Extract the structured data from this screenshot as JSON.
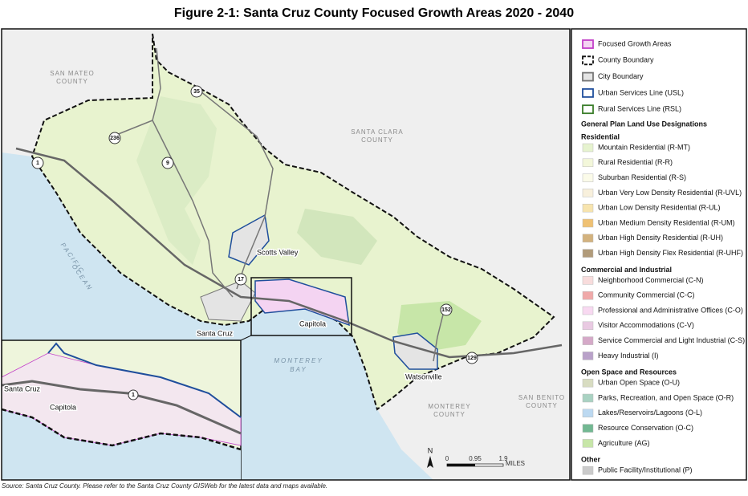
{
  "title": "Figure 2-1: Santa Cruz County Focused Growth Areas 2020 - 2040",
  "map": {
    "region_labels": [
      {
        "lines": [
          "SAN MATEO",
          "COUNTY"
        ]
      },
      {
        "lines": [
          "SANTA CLARA",
          "COUNTY"
        ]
      },
      {
        "lines": [
          "PACIFIC",
          "OCEAN"
        ]
      },
      {
        "lines": [
          "MONTEREY",
          "BAY"
        ]
      },
      {
        "lines": [
          "MONTEREY",
          "COUNTY"
        ]
      },
      {
        "lines": [
          "SAN BENITO",
          "COUNTY"
        ]
      }
    ],
    "city_labels": [
      "Scotts Valley",
      "Santa Cruz",
      "Capitola",
      "Watsonville"
    ],
    "route_shields": [
      "35",
      "236",
      "9",
      "1",
      "17",
      "152",
      "129"
    ],
    "inset": {
      "labels": [
        "Santa Cruz",
        "Capitola"
      ],
      "route_shield": "1"
    },
    "north": "N",
    "scale_bar": {
      "ticks": [
        "0",
        "0.95",
        "1.9"
      ],
      "unit": "MILES"
    }
  },
  "legend": {
    "boundaries": [
      {
        "label": "Focused Growth Areas",
        "style": "fill",
        "color": "#f4d4f2",
        "stroke": "#c23fc8"
      },
      {
        "label": "County Boundary",
        "style": "dash",
        "color": "#ffffff",
        "stroke": "#111111"
      },
      {
        "label": "City Boundary",
        "style": "fill",
        "color": "#e4e4e4",
        "stroke": "#777777"
      },
      {
        "label": "Urban Services Line (USL)",
        "style": "fill",
        "color": "#ffffff",
        "stroke": "#1f4e9c"
      },
      {
        "label": "Rural Services Line (RSL)",
        "style": "fill",
        "color": "#ffffff",
        "stroke": "#3a7d2a"
      }
    ],
    "heading": "General Plan Land Use Designations",
    "groups": [
      {
        "name": "Residential",
        "items": [
          {
            "label": "Mountain Residential (R-MT)",
            "color": "#e6f3cf"
          },
          {
            "label": "Rural Residential (R-R)",
            "color": "#f3f7da"
          },
          {
            "label": "Suburban Residential (R-S)",
            "color": "#fbfbe9"
          },
          {
            "label": "Urban Very Low Density Residential (R-UVL)",
            "color": "#f8f0dc"
          },
          {
            "label": "Urban Low Density Residential (R-UL)",
            "color": "#f7e4ae"
          },
          {
            "label": "Urban Medium Density Residential (R-UM)",
            "color": "#efc173"
          },
          {
            "label": "Urban High Density Residential (R-UH)",
            "color": "#d3b27e"
          },
          {
            "label": "Urban High Density Flex Residential (R-UHF)",
            "color": "#b19b7a"
          }
        ]
      },
      {
        "name": "Commercial and Industrial",
        "items": [
          {
            "label": "Neighborhood Commercial (C-N)",
            "color": "#f8dcdc"
          },
          {
            "label": "Community Commercial (C-C)",
            "color": "#f0a9a9"
          },
          {
            "label": "Professional and Administrative Offices (C-O)",
            "color": "#f8d9f1"
          },
          {
            "label": "Visitor Accommodations (C-V)",
            "color": "#e9cae2"
          },
          {
            "label": "Service Commercial and Light Industrial (C-S)",
            "color": "#d5a9c8"
          },
          {
            "label": "Heavy Industrial (I)",
            "color": "#b9a1c9"
          }
        ]
      },
      {
        "name": "Open Space and Resources",
        "items": [
          {
            "label": "Urban Open Space (O-U)",
            "color": "#d8dcc1"
          },
          {
            "label": "Parks, Recreation, and Open Space (O-R)",
            "color": "#a9d2c2"
          },
          {
            "label": "Lakes/Reservoirs/Lagoons (O-L)",
            "color": "#bcd9f1"
          },
          {
            "label": "Resource Conservation (O-C)",
            "color": "#72b892"
          },
          {
            "label": "Agriculture (AG)",
            "color": "#c7e6a8"
          }
        ]
      },
      {
        "name": "Other",
        "items": [
          {
            "label": "Public Facility/Institutional (P)",
            "color": "#cbcbcb"
          }
        ]
      }
    ]
  },
  "source": "Source: Santa Cruz County. Please refer to the Santa Cruz County GISWeb for the latest data and maps available."
}
